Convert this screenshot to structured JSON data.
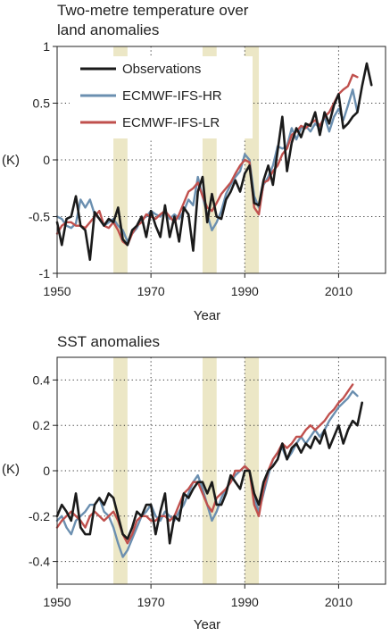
{
  "colors": {
    "observations": "#1a1a1a",
    "hr": "#6b8fb0",
    "lr": "#c0504d",
    "volcanic_band": "#ece7c6",
    "grid": "#333333",
    "frame": "#222222"
  },
  "legend": {
    "placement": "top-left",
    "entries": [
      "Observations",
      "ECMWF-IFS-HR",
      "ECMWF-IFS-LR"
    ]
  },
  "chart_data": [
    {
      "type": "line",
      "title_lines": [
        "Two-metre temperature over",
        "land anomalies"
      ],
      "xlabel": "Year",
      "ylabel": "(K)",
      "xlim": [
        1950,
        2020
      ],
      "ylim": [
        -1,
        1
      ],
      "xticks": [
        1950,
        1970,
        1990,
        2010
      ],
      "yticks": [
        -1,
        -0.5,
        0,
        0.5,
        1
      ],
      "ytick_labels": [
        "-1",
        "-0.5",
        "0",
        "0.5",
        "1"
      ],
      "grid": true,
      "shaded_periods": [
        [
          1962,
          1965
        ],
        [
          1981,
          1984
        ],
        [
          1990,
          1993
        ]
      ],
      "series": [
        {
          "name": "Observations",
          "x_start": 1950,
          "values": [
            -0.55,
            -0.75,
            -0.52,
            -0.5,
            -0.32,
            -0.58,
            -0.62,
            -0.88,
            -0.46,
            -0.52,
            -0.58,
            -0.52,
            -0.55,
            -0.42,
            -0.7,
            -0.75,
            -0.62,
            -0.58,
            -0.5,
            -0.68,
            -0.45,
            -0.58,
            -0.68,
            -0.4,
            -0.68,
            -0.5,
            -0.72,
            -0.42,
            -0.48,
            -0.8,
            -0.28,
            -0.15,
            -0.55,
            -0.3,
            -0.5,
            -0.52,
            -0.35,
            -0.28,
            -0.18,
            -0.28,
            -0.12,
            -0.05,
            -0.38,
            -0.4,
            -0.18,
            -0.05,
            -0.22,
            0.08,
            0.38,
            -0.1,
            0.15,
            0.28,
            0.2,
            0.32,
            0.3,
            0.42,
            0.22,
            0.42,
            0.32,
            0.48,
            0.58,
            0.28,
            0.32,
            0.38,
            0.42,
            0.65,
            0.85,
            0.66
          ]
        },
        {
          "name": "ECMWF-IFS-HR",
          "x_start": 1950,
          "values": [
            -0.5,
            -0.52,
            -0.58,
            -0.6,
            -0.56,
            -0.35,
            -0.42,
            -0.35,
            -0.48,
            -0.52,
            -0.58,
            -0.55,
            -0.52,
            -0.58,
            -0.62,
            -0.72,
            -0.65,
            -0.6,
            -0.52,
            -0.5,
            -0.45,
            -0.48,
            -0.5,
            -0.45,
            -0.52,
            -0.48,
            -0.52,
            -0.45,
            -0.35,
            -0.4,
            -0.15,
            -0.32,
            -0.48,
            -0.62,
            -0.55,
            -0.45,
            -0.3,
            -0.22,
            -0.15,
            -0.1,
            0.05,
            0.0,
            -0.32,
            -0.42,
            -0.22,
            -0.15,
            -0.05,
            0.12,
            0.1,
            0.12,
            0.28,
            0.18,
            0.28,
            0.3,
            0.25,
            0.32,
            0.28,
            0.38,
            0.25,
            0.38,
            0.45,
            0.35,
            0.48,
            0.62,
            0.42
          ]
        },
        {
          "name": "ECMWF-IFS-LR",
          "x_start": 1950,
          "values": [
            -0.65,
            -0.58,
            -0.55,
            -0.55,
            -0.58,
            -0.58,
            -0.6,
            -0.55,
            -0.5,
            -0.45,
            -0.58,
            -0.6,
            -0.55,
            -0.62,
            -0.72,
            -0.75,
            -0.65,
            -0.58,
            -0.55,
            -0.48,
            -0.5,
            -0.52,
            -0.48,
            -0.45,
            -0.5,
            -0.55,
            -0.48,
            -0.38,
            -0.28,
            -0.25,
            -0.2,
            -0.32,
            -0.42,
            -0.45,
            -0.38,
            -0.3,
            -0.25,
            -0.2,
            -0.12,
            -0.05,
            0.0,
            -0.02,
            -0.42,
            -0.48,
            -0.2,
            -0.18,
            -0.1,
            -0.05,
            0.05,
            0.1,
            0.22,
            0.25,
            0.3,
            0.28,
            0.32,
            0.35,
            0.3,
            0.38,
            0.42,
            0.5,
            0.58,
            0.62,
            0.65,
            0.75,
            0.73
          ]
        }
      ]
    },
    {
      "type": "line",
      "title_lines": [
        "SST anomalies"
      ],
      "xlabel": "Year",
      "ylabel": "(K)",
      "xlim": [
        1950,
        2020
      ],
      "ylim": [
        -0.5,
        0.5
      ],
      "xticks": [
        1950,
        1970,
        1990,
        2010
      ],
      "yticks": [
        -0.4,
        -0.2,
        0,
        0.2,
        0.4
      ],
      "ytick_labels": [
        "-0.4",
        "-0.2",
        "0",
        "0.2",
        "0.4"
      ],
      "grid": true,
      "shaded_periods": [
        [
          1962,
          1965
        ],
        [
          1981,
          1984
        ],
        [
          1990,
          1993
        ]
      ],
      "series": [
        {
          "name": "Observations",
          "x_start": 1950,
          "values": [
            -0.2,
            -0.15,
            -0.18,
            -0.22,
            -0.1,
            -0.25,
            -0.28,
            -0.28,
            -0.15,
            -0.12,
            -0.15,
            -0.1,
            -0.12,
            -0.2,
            -0.28,
            -0.3,
            -0.25,
            -0.18,
            -0.2,
            -0.15,
            -0.15,
            -0.28,
            -0.18,
            -0.1,
            -0.32,
            -0.2,
            -0.22,
            -0.1,
            -0.12,
            -0.08,
            -0.05,
            -0.05,
            -0.1,
            -0.05,
            -0.15,
            -0.15,
            -0.1,
            -0.02,
            -0.05,
            -0.08,
            0.0,
            0.0,
            -0.1,
            -0.15,
            -0.05,
            0.0,
            0.02,
            0.05,
            0.12,
            0.05,
            0.1,
            0.12,
            0.08,
            0.12,
            0.1,
            0.15,
            0.12,
            0.18,
            0.1,
            0.15,
            0.2,
            0.12,
            0.18,
            0.22,
            0.2,
            0.3
          ]
        },
        {
          "name": "ECMWF-IFS-HR",
          "x_start": 1950,
          "values": [
            -0.22,
            -0.2,
            -0.25,
            -0.28,
            -0.22,
            -0.2,
            -0.18,
            -0.15,
            -0.15,
            -0.12,
            -0.18,
            -0.2,
            -0.25,
            -0.32,
            -0.38,
            -0.35,
            -0.3,
            -0.25,
            -0.2,
            -0.18,
            -0.15,
            -0.2,
            -0.22,
            -0.18,
            -0.2,
            -0.22,
            -0.18,
            -0.15,
            -0.1,
            -0.05,
            -0.02,
            -0.08,
            -0.15,
            -0.22,
            -0.18,
            -0.12,
            -0.08,
            -0.05,
            -0.02,
            0.0,
            0.02,
            0.0,
            -0.12,
            -0.18,
            -0.1,
            -0.02,
            0.05,
            0.08,
            0.1,
            0.05,
            0.08,
            0.12,
            0.15,
            0.12,
            0.15,
            0.18,
            0.15,
            0.18,
            0.22,
            0.25,
            0.28,
            0.3,
            0.32,
            0.35,
            0.33
          ]
        },
        {
          "name": "ECMWF-IFS-LR",
          "x_start": 1950,
          "values": [
            -0.25,
            -0.22,
            -0.2,
            -0.18,
            -0.2,
            -0.22,
            -0.25,
            -0.2,
            -0.18,
            -0.2,
            -0.22,
            -0.2,
            -0.18,
            -0.22,
            -0.28,
            -0.32,
            -0.28,
            -0.22,
            -0.2,
            -0.2,
            -0.22,
            -0.22,
            -0.2,
            -0.2,
            -0.22,
            -0.2,
            -0.15,
            -0.1,
            -0.08,
            -0.05,
            -0.05,
            -0.1,
            -0.15,
            -0.18,
            -0.12,
            -0.1,
            -0.08,
            -0.05,
            0.0,
            0.0,
            0.02,
            0.0,
            -0.15,
            -0.2,
            -0.08,
            0.0,
            0.05,
            0.08,
            0.12,
            0.1,
            0.12,
            0.15,
            0.15,
            0.18,
            0.2,
            0.18,
            0.2,
            0.22,
            0.25,
            0.27,
            0.3,
            0.32,
            0.35,
            0.38
          ]
        }
      ]
    }
  ]
}
